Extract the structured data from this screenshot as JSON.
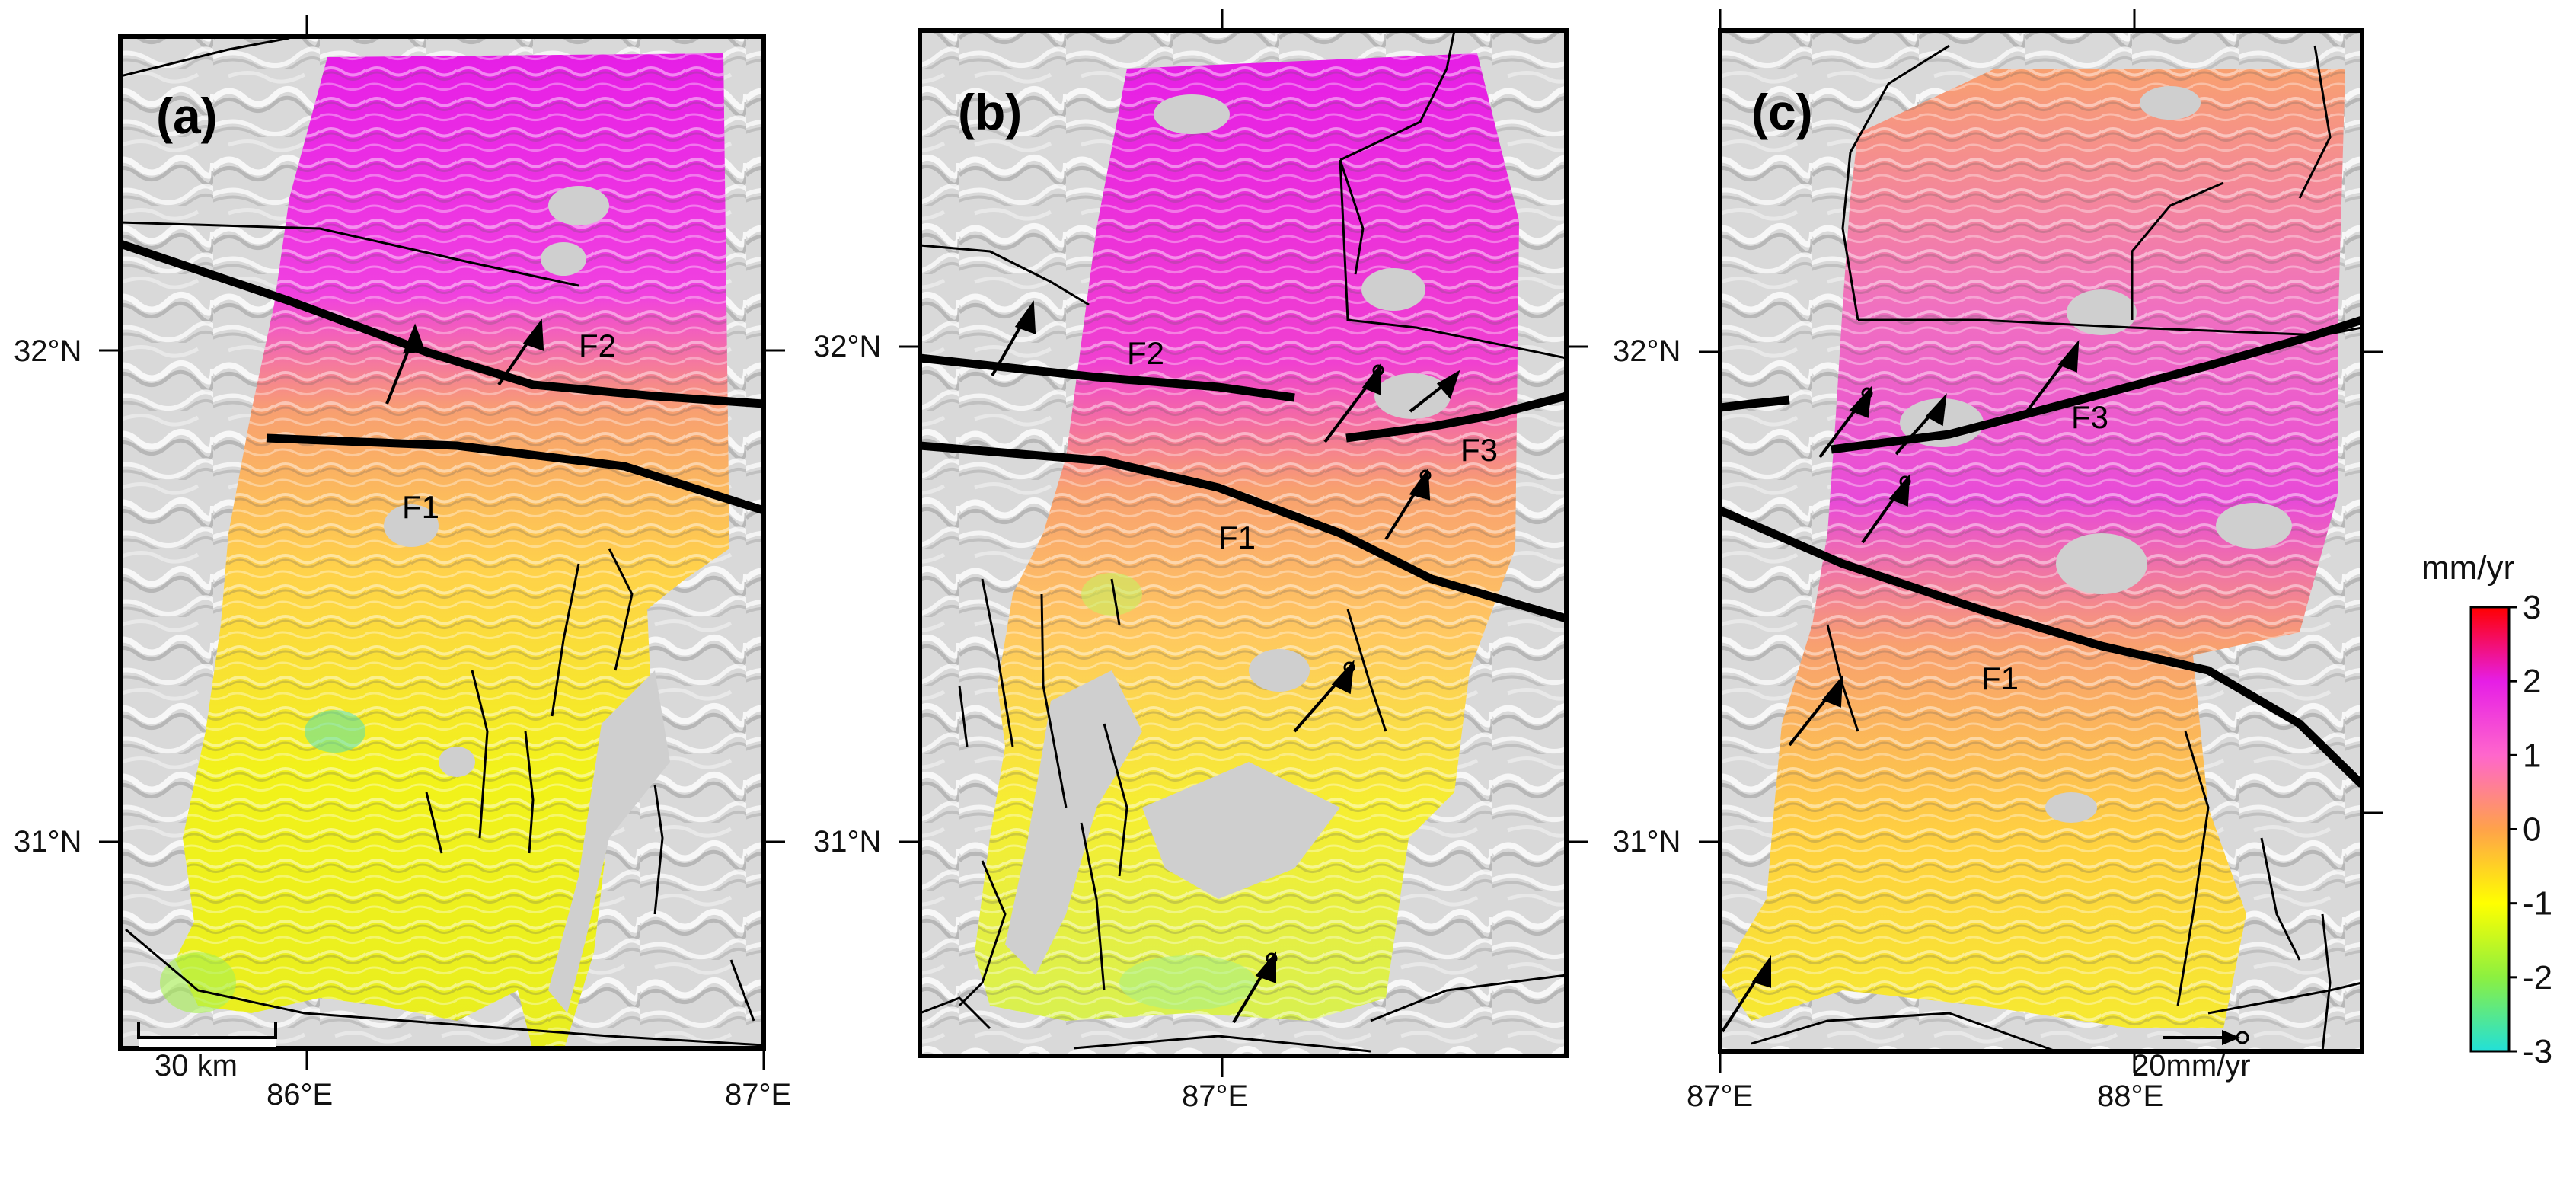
{
  "panels": [
    {
      "label": "(a)",
      "lat_labels": [
        "32°N",
        "31°N"
      ],
      "lon_labels": [
        "86°E",
        "87°E"
      ],
      "fault_labels": [
        "F1",
        "F2"
      ],
      "scale_bar": "30 km"
    },
    {
      "label": "(b)",
      "lat_labels": [
        "32°N",
        "31°N"
      ],
      "lon_labels": [
        "87°E"
      ],
      "fault_labels": [
        "F1",
        "F2",
        "F3"
      ]
    },
    {
      "label": "(c)",
      "lat_labels": [
        "32°N",
        "31°N"
      ],
      "lon_labels": [
        "87°E",
        "88°E"
      ],
      "fault_labels": [
        "F1",
        "F3"
      ],
      "vector_scale": "20mm/yr"
    }
  ],
  "colorbar": {
    "unit": "mm/yr",
    "ticks": [
      "3",
      "2",
      "1",
      "0",
      "-1",
      "-2",
      "-3"
    ],
    "min": -3,
    "max": 3,
    "colors": [
      "#22e0d8",
      "#8cf040",
      "#ffff00",
      "#ffa24a",
      "#ff66cc",
      "#e61ee6",
      "#ff0000"
    ]
  }
}
